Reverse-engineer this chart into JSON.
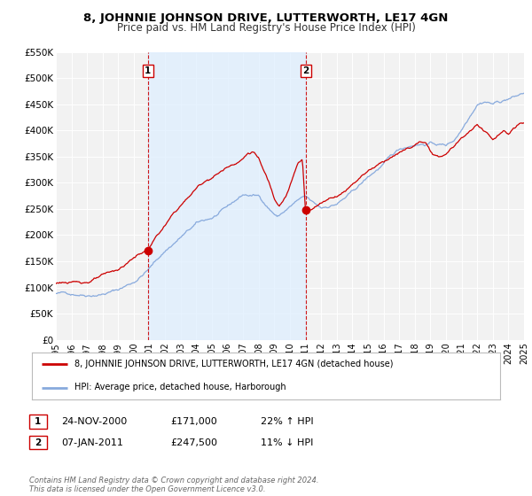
{
  "title": "8, JOHNNIE JOHNSON DRIVE, LUTTERWORTH, LE17 4GN",
  "subtitle": "Price paid vs. HM Land Registry's House Price Index (HPI)",
  "background_color": "#ffffff",
  "plot_bg_color": "#f2f2f2",
  "grid_color": "#ffffff",
  "xmin": 1995,
  "xmax": 2025,
  "ymin": 0,
  "ymax": 550000,
  "yticks": [
    0,
    50000,
    100000,
    150000,
    200000,
    250000,
    300000,
    350000,
    400000,
    450000,
    500000,
    550000
  ],
  "ytick_labels": [
    "£0",
    "£50K",
    "£100K",
    "£150K",
    "£200K",
    "£250K",
    "£300K",
    "£350K",
    "£400K",
    "£450K",
    "£500K",
    "£550K"
  ],
  "xticks": [
    1995,
    1996,
    1997,
    1998,
    1999,
    2000,
    2001,
    2002,
    2003,
    2004,
    2005,
    2006,
    2007,
    2008,
    2009,
    2010,
    2011,
    2012,
    2013,
    2014,
    2015,
    2016,
    2017,
    2018,
    2019,
    2020,
    2021,
    2022,
    2023,
    2024,
    2025
  ],
  "red_line_color": "#cc0000",
  "blue_line_color": "#88aadd",
  "blue_fill_color": "#ddeeff",
  "shade_x1": 2000.9,
  "shade_x2": 2011.0,
  "marker1_x": 2000.9,
  "marker1_y": 171000,
  "marker2_x": 2011.0,
  "marker2_y": 247500,
  "legend_red_label": "8, JOHNNIE JOHNSON DRIVE, LUTTERWORTH, LE17 4GN (detached house)",
  "legend_blue_label": "HPI: Average price, detached house, Harborough",
  "table_row1": [
    "1",
    "24-NOV-2000",
    "£171,000",
    "22% ↑ HPI"
  ],
  "table_row2": [
    "2",
    "07-JAN-2011",
    "£247,500",
    "11% ↓ HPI"
  ],
  "footer_text": "Contains HM Land Registry data © Crown copyright and database right 2024.\nThis data is licensed under the Open Government Licence v3.0.",
  "title_fontsize": 9.5,
  "subtitle_fontsize": 8.5
}
